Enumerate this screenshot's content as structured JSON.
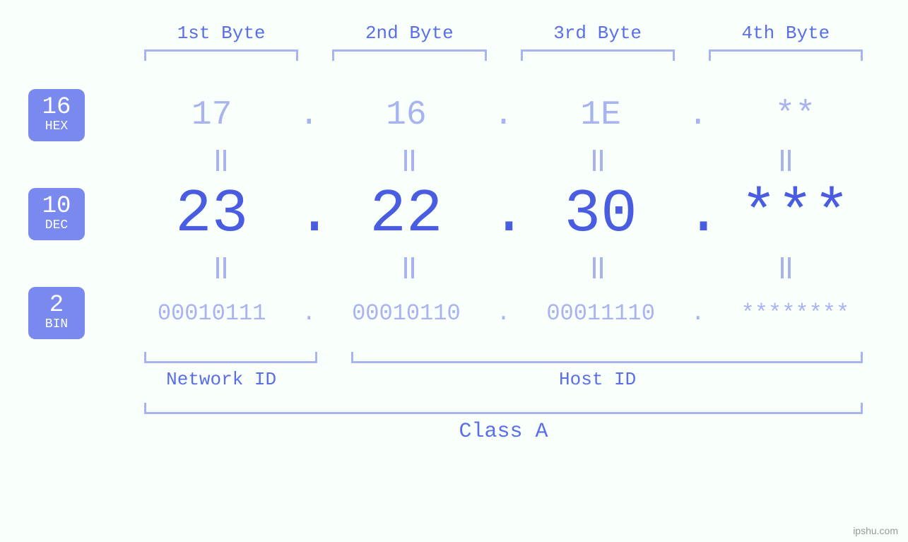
{
  "colors": {
    "background": "#f9fffb",
    "accent_primary": "#4a5de0",
    "accent_light": "#a8b3f0",
    "badge_bg": "#7a89ed",
    "label_color": "#5a6ee8",
    "badge_text": "#ffffff"
  },
  "typography": {
    "font_family": "monospace",
    "header_fontsize": 26,
    "hex_fontsize": 48,
    "dec_fontsize": 86,
    "bin_fontsize": 32,
    "badge_num_fontsize": 34,
    "badge_label_fontsize": 18,
    "class_fontsize": 30
  },
  "byte_headers": [
    "1st Byte",
    "2nd Byte",
    "3rd Byte",
    "4th Byte"
  ],
  "bases": [
    {
      "num": "16",
      "label": "HEX",
      "values": [
        "17",
        "16",
        "1E",
        "**"
      ]
    },
    {
      "num": "10",
      "label": "DEC",
      "values": [
        "23",
        "22",
        "30",
        "***"
      ]
    },
    {
      "num": "2",
      "label": "BIN",
      "values": [
        "00010111",
        "00010110",
        "00011110",
        "********"
      ]
    }
  ],
  "separator": ".",
  "id_sections": {
    "network": {
      "label": "Network ID",
      "byte_span": 1
    },
    "host": {
      "label": "Host ID",
      "byte_span": 3
    }
  },
  "class_label": "Class A",
  "watermark": "ipshu.com"
}
